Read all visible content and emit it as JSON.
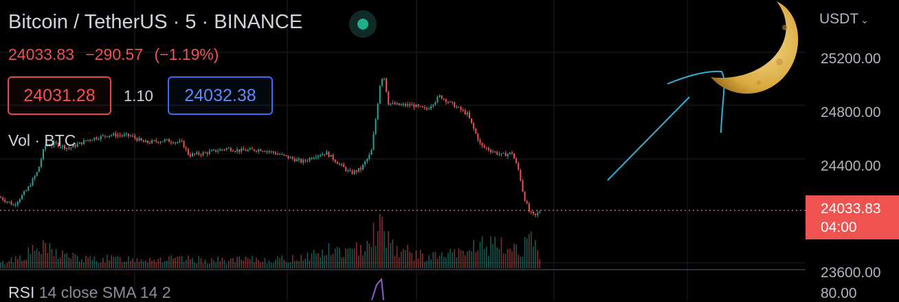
{
  "header": {
    "symbol_title": "Bitcoin / TetherUS · 5 · BINANCE",
    "ohlc_price": "24033.83",
    "ohlc_change": "−290.57",
    "ohlc_change_pct": "(−1.19%)"
  },
  "order_book": {
    "bid": "24031.28",
    "spread": "1.10",
    "ask": "24032.38"
  },
  "panes": {
    "volume_label": "Vol · BTC",
    "rsi_name": "RSI",
    "rsi_params": "14 close SMA 14 2"
  },
  "axis": {
    "currency": "USDT",
    "currency_icon": "chevron-down-icon"
  },
  "last_price": {
    "value": "24033.83",
    "countdown": "04:00"
  },
  "colors": {
    "up": "#26a69a",
    "down": "#ef5350",
    "bid_border": "#e64a4e",
    "ask_border": "#3a6ff5",
    "annotation": "#2fb4d8",
    "live_dot": "#1fae8c",
    "rsi_line": "#9b59d0"
  },
  "chart_data": {
    "type": "candlestick",
    "y_axis_ticks": [
      "25200.00",
      "24800.00",
      "24400.00",
      "23600.00"
    ],
    "rsi_axis_ticks": [
      "80.00"
    ],
    "ylim": [
      23560,
      25420
    ],
    "last_price_line": 24033.83,
    "grid": true,
    "close_path": [
      [
        0,
        24150
      ],
      [
        20,
        24080
      ],
      [
        40,
        24220
      ],
      [
        55,
        24380
      ],
      [
        65,
        24600
      ],
      [
        80,
        24620
      ],
      [
        100,
        24580
      ],
      [
        130,
        24660
      ],
      [
        160,
        24700
      ],
      [
        190,
        24690
      ],
      [
        210,
        24630
      ],
      [
        240,
        24650
      ],
      [
        265,
        24630
      ],
      [
        275,
        24520
      ],
      [
        300,
        24540
      ],
      [
        330,
        24580
      ],
      [
        350,
        24560
      ],
      [
        380,
        24570
      ],
      [
        400,
        24540
      ],
      [
        420,
        24500
      ],
      [
        440,
        24460
      ],
      [
        460,
        24520
      ],
      [
        475,
        24540
      ],
      [
        490,
        24460
      ],
      [
        510,
        24360
      ],
      [
        525,
        24400
      ],
      [
        540,
        24540
      ],
      [
        548,
        24900
      ],
      [
        553,
        25150
      ],
      [
        558,
        25240
      ],
      [
        565,
        24980
      ],
      [
        580,
        24960
      ],
      [
        600,
        24960
      ],
      [
        620,
        24920
      ],
      [
        640,
        25040
      ],
      [
        660,
        24960
      ],
      [
        680,
        24880
      ],
      [
        690,
        24740
      ],
      [
        700,
        24600
      ],
      [
        715,
        24560
      ],
      [
        730,
        24520
      ],
      [
        745,
        24540
      ],
      [
        755,
        24380
      ],
      [
        762,
        24160
      ],
      [
        770,
        24020
      ],
      [
        778,
        23980
      ],
      [
        786,
        24030
      ]
    ],
    "volume": [
      [
        0,
        0.1
      ],
      [
        60,
        0.45
      ],
      [
        120,
        0.2
      ],
      [
        200,
        0.22
      ],
      [
        260,
        0.2
      ],
      [
        320,
        0.18
      ],
      [
        420,
        0.2
      ],
      [
        480,
        0.4
      ],
      [
        515,
        0.35
      ],
      [
        548,
        0.9
      ],
      [
        558,
        0.95
      ],
      [
        575,
        0.45
      ],
      [
        620,
        0.25
      ],
      [
        680,
        0.35
      ],
      [
        692,
        0.55
      ],
      [
        740,
        0.45
      ],
      [
        762,
        0.5
      ],
      [
        778,
        0.6
      ],
      [
        786,
        0.1
      ]
    ]
  }
}
